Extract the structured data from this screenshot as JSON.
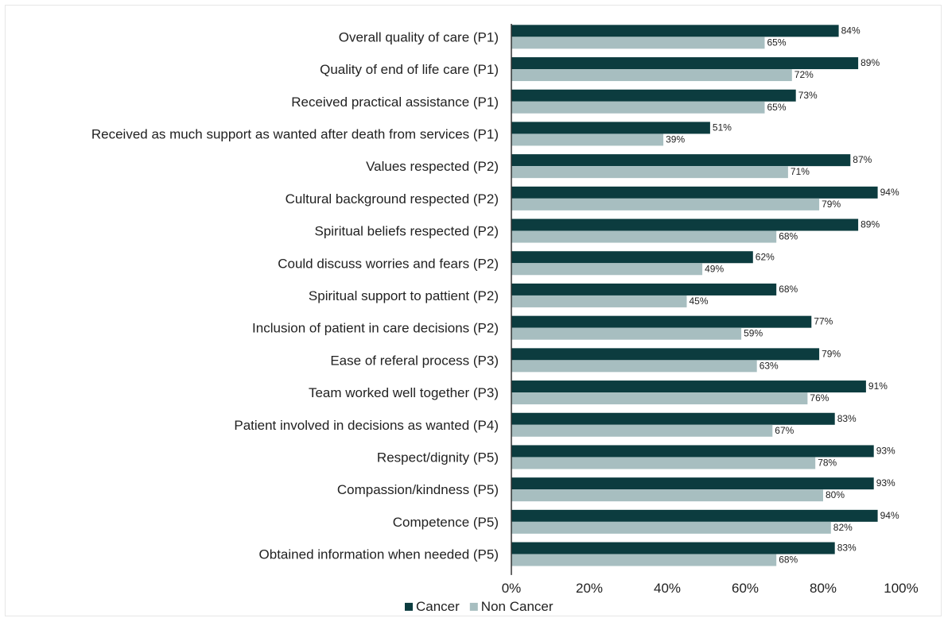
{
  "chart_data": {
    "type": "bar",
    "orientation": "horizontal",
    "title": "",
    "xlabel": "",
    "ylabel": "",
    "xlim": [
      0,
      100
    ],
    "x_ticks": [
      "0%",
      "20%",
      "40%",
      "60%",
      "80%",
      "100%"
    ],
    "grid": false,
    "legend_position": "bottom",
    "categories": [
      "Overall quality of care (P1)",
      "Quality of end of life care (P1)",
      "Received practical assistance (P1)",
      "Received as much support as wanted after death from services (P1)",
      "Values respected (P2)",
      "Cultural background respected (P2)",
      "Spiritual beliefs respected (P2)",
      "Could discuss worries and fears (P2)",
      "Spiritual support to pattient (P2)",
      "Inclusion of patient in care decisions (P2)",
      "Ease of referal process (P3)",
      "Team worked well together (P3)",
      "Patient involved in decisions as wanted (P4)",
      "Respect/dignity (P5)",
      "Compassion/kindness (P5)",
      "Competence (P5)",
      "Obtained information when needed (P5)"
    ],
    "series": [
      {
        "name": "Cancer",
        "color": "#0c3c3f",
        "values": [
          84,
          89,
          73,
          51,
          87,
          94,
          89,
          62,
          68,
          77,
          79,
          91,
          83,
          93,
          93,
          94,
          83
        ],
        "labels": [
          "84%",
          "89%",
          "73%",
          "51%",
          "87%",
          "94%",
          "89%",
          "62%",
          "68%",
          "77%",
          "79%",
          "91%",
          "83%",
          "93%",
          "93%",
          "94%",
          "83%"
        ]
      },
      {
        "name": "Non Cancer",
        "color": "#a7bec0",
        "values": [
          65,
          72,
          65,
          39,
          71,
          79,
          68,
          49,
          45,
          59,
          63,
          76,
          67,
          78,
          80,
          82,
          68
        ],
        "labels": [
          "65%",
          "72%",
          "65%",
          "39%",
          "71%",
          "79%",
          "68%",
          "49%",
          "45%",
          "59%",
          "63%",
          "76%",
          "67%",
          "78%",
          "80%",
          "82%",
          "68%"
        ]
      }
    ]
  }
}
